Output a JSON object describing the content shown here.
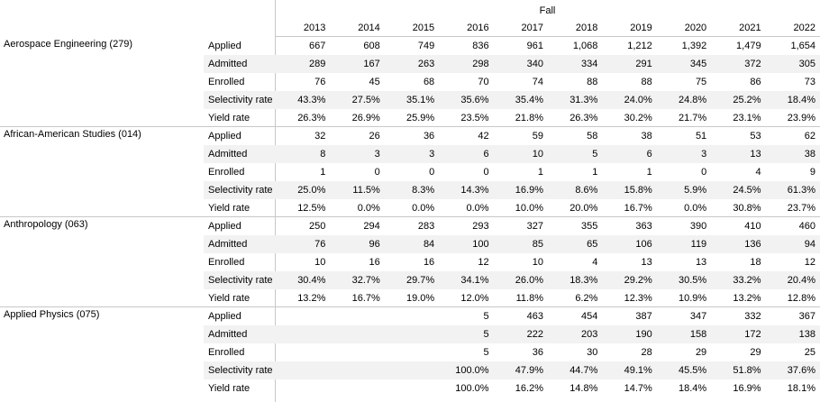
{
  "header": {
    "title": "Fall",
    "years": [
      2013,
      2014,
      2015,
      2016,
      2017,
      2018,
      2019,
      2020,
      2021,
      2022
    ]
  },
  "groups": [
    {
      "name": "Aerospace Engineering (279)",
      "rows": [
        {
          "label": "Applied",
          "values": [
            "667",
            "608",
            "749",
            "836",
            "961",
            "1,068",
            "1,212",
            "1,392",
            "1,479",
            "1,654"
          ]
        },
        {
          "label": "Admitted",
          "values": [
            "289",
            "167",
            "263",
            "298",
            "340",
            "334",
            "291",
            "345",
            "372",
            "305"
          ]
        },
        {
          "label": "Enrolled",
          "values": [
            "76",
            "45",
            "68",
            "70",
            "74",
            "88",
            "88",
            "75",
            "86",
            "73"
          ]
        },
        {
          "label": "Selectivity rate",
          "values": [
            "43.3%",
            "27.5%",
            "35.1%",
            "35.6%",
            "35.4%",
            "31.3%",
            "24.0%",
            "24.8%",
            "25.2%",
            "18.4%"
          ]
        },
        {
          "label": "Yield rate",
          "values": [
            "26.3%",
            "26.9%",
            "25.9%",
            "23.5%",
            "21.8%",
            "26.3%",
            "30.2%",
            "21.7%",
            "23.1%",
            "23.9%"
          ]
        }
      ]
    },
    {
      "name": "African-American Studies (014)",
      "rows": [
        {
          "label": "Applied",
          "values": [
            "32",
            "26",
            "36",
            "42",
            "59",
            "58",
            "38",
            "51",
            "53",
            "62"
          ]
        },
        {
          "label": "Admitted",
          "values": [
            "8",
            "3",
            "3",
            "6",
            "10",
            "5",
            "6",
            "3",
            "13",
            "38"
          ]
        },
        {
          "label": "Enrolled",
          "values": [
            "1",
            "0",
            "0",
            "0",
            "1",
            "1",
            "1",
            "0",
            "4",
            "9"
          ]
        },
        {
          "label": "Selectivity rate",
          "values": [
            "25.0%",
            "11.5%",
            "8.3%",
            "14.3%",
            "16.9%",
            "8.6%",
            "15.8%",
            "5.9%",
            "24.5%",
            "61.3%"
          ]
        },
        {
          "label": "Yield rate",
          "values": [
            "12.5%",
            "0.0%",
            "0.0%",
            "0.0%",
            "10.0%",
            "20.0%",
            "16.7%",
            "0.0%",
            "30.8%",
            "23.7%"
          ]
        }
      ]
    },
    {
      "name": "Anthropology (063)",
      "rows": [
        {
          "label": "Applied",
          "values": [
            "250",
            "294",
            "283",
            "293",
            "327",
            "355",
            "363",
            "390",
            "410",
            "460"
          ]
        },
        {
          "label": "Admitted",
          "values": [
            "76",
            "96",
            "84",
            "100",
            "85",
            "65",
            "106",
            "119",
            "136",
            "94"
          ]
        },
        {
          "label": "Enrolled",
          "values": [
            "10",
            "16",
            "16",
            "12",
            "10",
            "4",
            "13",
            "13",
            "18",
            "12"
          ]
        },
        {
          "label": "Selectivity rate",
          "values": [
            "30.4%",
            "32.7%",
            "29.7%",
            "34.1%",
            "26.0%",
            "18.3%",
            "29.2%",
            "30.5%",
            "33.2%",
            "20.4%"
          ]
        },
        {
          "label": "Yield rate",
          "values": [
            "13.2%",
            "16.7%",
            "19.0%",
            "12.0%",
            "11.8%",
            "6.2%",
            "12.3%",
            "10.9%",
            "13.2%",
            "12.8%"
          ]
        }
      ]
    },
    {
      "name": "Applied Physics (075)",
      "rows": [
        {
          "label": "Applied",
          "values": [
            null,
            null,
            null,
            "5",
            "463",
            "454",
            "387",
            "347",
            "332",
            "367"
          ]
        },
        {
          "label": "Admitted",
          "values": [
            null,
            null,
            null,
            "5",
            "222",
            "203",
            "190",
            "158",
            "172",
            "138"
          ]
        },
        {
          "label": "Enrolled",
          "values": [
            null,
            null,
            null,
            "5",
            "36",
            "30",
            "28",
            "29",
            "29",
            "25"
          ]
        },
        {
          "label": "Selectivity rate",
          "values": [
            null,
            null,
            null,
            "100.0%",
            "47.9%",
            "44.7%",
            "49.1%",
            "45.5%",
            "51.8%",
            "37.6%"
          ]
        },
        {
          "label": "Yield rate",
          "values": [
            null,
            null,
            null,
            "100.0%",
            "16.2%",
            "14.8%",
            "14.7%",
            "18.4%",
            "16.9%",
            "18.1%"
          ]
        }
      ]
    }
  ]
}
